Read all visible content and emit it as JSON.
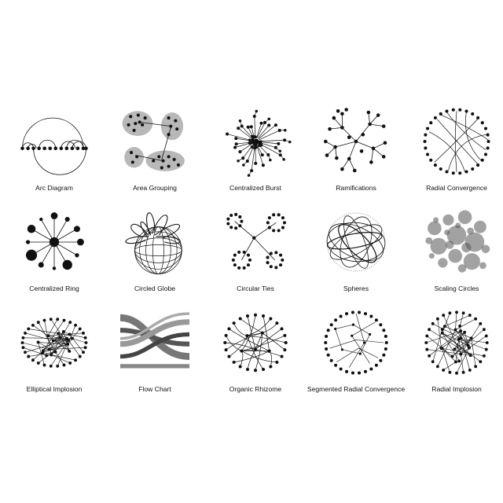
{
  "diagrams": [
    {
      "label": "Arc Diagram",
      "icon": "arc-diagram-icon"
    },
    {
      "label": "Area Grouping",
      "icon": "area-grouping-icon"
    },
    {
      "label": "Centralized Burst",
      "icon": "centralized-burst-icon"
    },
    {
      "label": "Ramifications",
      "icon": "ramifications-icon"
    },
    {
      "label": "Radial Convergence",
      "icon": "radial-convergence-icon"
    },
    {
      "label": "Centralized Ring",
      "icon": "centralized-ring-icon"
    },
    {
      "label": "Circled Globe",
      "icon": "circled-globe-icon"
    },
    {
      "label": "Circular Ties",
      "icon": "circular-ties-icon"
    },
    {
      "label": "Spheres",
      "icon": "spheres-icon"
    },
    {
      "label": "Scaling Circles",
      "icon": "scaling-circles-icon"
    },
    {
      "label": "Elliptical Implosion",
      "icon": "elliptical-implosion-icon"
    },
    {
      "label": "Flow Chart",
      "icon": "flow-chart-icon"
    },
    {
      "label": "Organic Rhizome",
      "icon": "organic-rhizome-icon"
    },
    {
      "label": "Segmented Radial Convergence",
      "icon": "segmented-radial-convergence-icon"
    },
    {
      "label": "Radial Implosion",
      "icon": "radial-implosion-icon"
    }
  ],
  "colors": {
    "ink": "#111111",
    "fill_gray": "#b8b8b8",
    "circle_gray": "#555555"
  }
}
